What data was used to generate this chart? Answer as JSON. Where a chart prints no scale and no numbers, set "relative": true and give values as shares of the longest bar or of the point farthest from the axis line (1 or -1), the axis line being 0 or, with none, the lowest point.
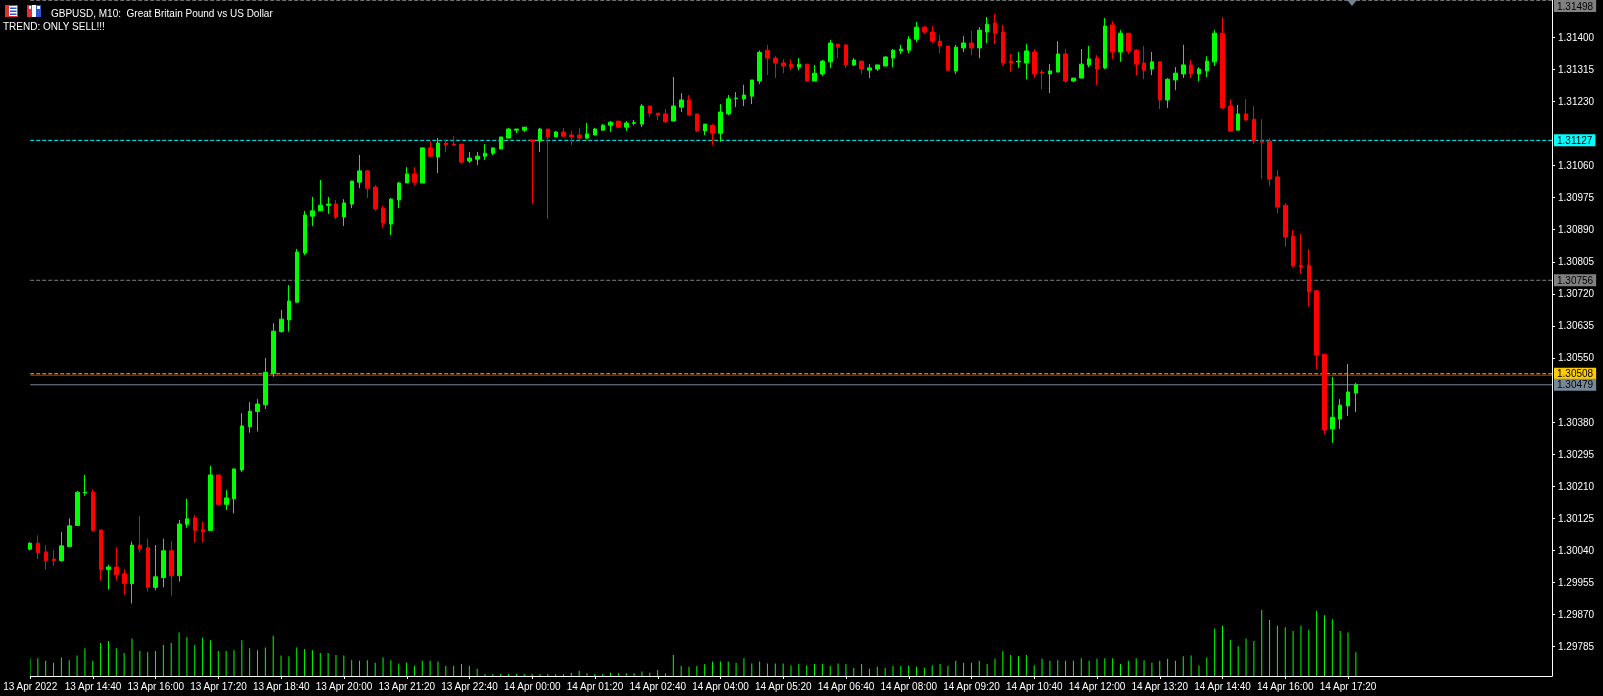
{
  "chart_data": [
    {
      "type": "candlestick",
      "title": "GBPUSD, M10:  Great Britain Pound vs US Dollar",
      "annotations": [
        "TREND: ONLY SELL!!!"
      ],
      "x": [
        "2022-04-13T13:20",
        "2022-04-13T13:30",
        "2022-04-13T13:40",
        "2022-04-13T13:50",
        "2022-04-13T14:00",
        "2022-04-13T14:10",
        "2022-04-13T14:20",
        "2022-04-13T14:30",
        "2022-04-13T14:40",
        "2022-04-13T14:50",
        "2022-04-13T15:00",
        "2022-04-13T15:10",
        "2022-04-13T15:20",
        "2022-04-13T15:30",
        "2022-04-13T15:40",
        "2022-04-13T15:50",
        "2022-04-13T16:00",
        "2022-04-13T16:10",
        "2022-04-13T16:20",
        "2022-04-13T16:30",
        "2022-04-13T16:40",
        "2022-04-13T16:50",
        "2022-04-13T17:00",
        "2022-04-13T17:10",
        "2022-04-13T17:20",
        "2022-04-13T17:30",
        "2022-04-13T17:40",
        "2022-04-13T17:50",
        "2022-04-13T18:00",
        "2022-04-13T18:10",
        "2022-04-13T18:20",
        "2022-04-13T18:30",
        "2022-04-13T18:40",
        "2022-04-13T18:50",
        "2022-04-13T19:00",
        "2022-04-13T19:10",
        "2022-04-13T19:20",
        "2022-04-13T19:30",
        "2022-04-13T19:40",
        "2022-04-13T19:50",
        "2022-04-13T20:00",
        "2022-04-13T20:10",
        "2022-04-13T20:20",
        "2022-04-13T20:30",
        "2022-04-13T20:40",
        "2022-04-13T20:50",
        "2022-04-13T21:00",
        "2022-04-13T21:10",
        "2022-04-13T21:20",
        "2022-04-13T21:30",
        "2022-04-13T21:40",
        "2022-04-13T21:50",
        "2022-04-13T22:00",
        "2022-04-13T22:10",
        "2022-04-13T22:20",
        "2022-04-13T22:30",
        "2022-04-13T22:40",
        "2022-04-13T22:50",
        "2022-04-13T23:00",
        "2022-04-13T23:10",
        "2022-04-13T23:20",
        "2022-04-13T23:30",
        "2022-04-13T23:40",
        "2022-04-13T23:50",
        "2022-04-14T00:00",
        "2022-04-14T00:10",
        "2022-04-14T00:20",
        "2022-04-14T00:30",
        "2022-04-14T00:40",
        "2022-04-14T00:50",
        "2022-04-14T01:00",
        "2022-04-14T01:10",
        "2022-04-14T01:20",
        "2022-04-14T01:30",
        "2022-04-14T01:40",
        "2022-04-14T01:50",
        "2022-04-14T02:00",
        "2022-04-14T02:10",
        "2022-04-14T02:20",
        "2022-04-14T02:30",
        "2022-04-14T02:40",
        "2022-04-14T02:50",
        "2022-04-14T03:00",
        "2022-04-14T03:10",
        "2022-04-14T03:20",
        "2022-04-14T03:30",
        "2022-04-14T03:40",
        "2022-04-14T03:50",
        "2022-04-14T04:00",
        "2022-04-14T04:10",
        "2022-04-14T04:20",
        "2022-04-14T04:30",
        "2022-04-14T04:40",
        "2022-04-14T04:50",
        "2022-04-14T05:00",
        "2022-04-14T05:10",
        "2022-04-14T05:20",
        "2022-04-14T05:30",
        "2022-04-14T05:40",
        "2022-04-14T05:50",
        "2022-04-14T06:00",
        "2022-04-14T06:10",
        "2022-04-14T06:20",
        "2022-04-14T06:30",
        "2022-04-14T06:40",
        "2022-04-14T06:50",
        "2022-04-14T07:00",
        "2022-04-14T07:10",
        "2022-04-14T07:20",
        "2022-04-14T07:30",
        "2022-04-14T07:40",
        "2022-04-14T07:50",
        "2022-04-14T08:00",
        "2022-04-14T08:10",
        "2022-04-14T08:20",
        "2022-04-14T08:30",
        "2022-04-14T08:40",
        "2022-04-14T08:50",
        "2022-04-14T09:00",
        "2022-04-14T09:10",
        "2022-04-14T09:20",
        "2022-04-14T09:30",
        "2022-04-14T09:40",
        "2022-04-14T09:50",
        "2022-04-14T10:00",
        "2022-04-14T10:10",
        "2022-04-14T10:20",
        "2022-04-14T10:30",
        "2022-04-14T10:40",
        "2022-04-14T10:50",
        "2022-04-14T11:00",
        "2022-04-14T11:10",
        "2022-04-14T11:20",
        "2022-04-14T11:30",
        "2022-04-14T11:40",
        "2022-04-14T11:50",
        "2022-04-14T12:00",
        "2022-04-14T12:10",
        "2022-04-14T12:20",
        "2022-04-14T12:30",
        "2022-04-14T12:40",
        "2022-04-14T12:50",
        "2022-04-14T13:00",
        "2022-04-14T13:10",
        "2022-04-14T13:20",
        "2022-04-14T13:30",
        "2022-04-14T13:40",
        "2022-04-14T13:50",
        "2022-04-14T14:00",
        "2022-04-14T14:10",
        "2022-04-14T14:20",
        "2022-04-14T14:30",
        "2022-04-14T14:40",
        "2022-04-14T14:50",
        "2022-04-14T15:00",
        "2022-04-14T15:10",
        "2022-04-14T15:20",
        "2022-04-14T15:30",
        "2022-04-14T15:40",
        "2022-04-14T15:50",
        "2022-04-14T16:00",
        "2022-04-14T16:10",
        "2022-04-14T16:20",
        "2022-04-14T16:30",
        "2022-04-14T16:40",
        "2022-04-14T16:50",
        "2022-04-14T17:00",
        "2022-04-14T17:10",
        "2022-04-14T17:20",
        "2022-04-14T17:30"
      ],
      "ohlc": [
        [
          1.30043,
          1.30062,
          1.3004,
          1.30059
        ],
        [
          1.30059,
          1.3008,
          1.30017,
          1.30034
        ],
        [
          1.30036,
          1.30054,
          1.29989,
          1.30013
        ],
        [
          1.30017,
          1.30041,
          1.29999,
          1.30013
        ],
        [
          1.30013,
          1.30089,
          1.3001,
          1.30052
        ],
        [
          1.3005,
          1.30125,
          1.3005,
          1.30105
        ],
        [
          1.30106,
          1.30198,
          1.30106,
          1.30194
        ],
        [
          1.30192,
          1.3024,
          1.30185,
          1.30194
        ],
        [
          1.30194,
          1.30202,
          1.3009,
          1.30093
        ],
        [
          1.30094,
          1.30094,
          1.2996,
          1.29989
        ],
        [
          1.29989,
          1.30002,
          1.29936,
          1.29996
        ],
        [
          1.29996,
          1.30048,
          1.2996,
          1.29976
        ],
        [
          1.29978,
          1.2999,
          1.29923,
          1.29952
        ],
        [
          1.29952,
          1.30063,
          1.29899,
          1.30054
        ],
        [
          1.30054,
          1.30132,
          1.30034,
          1.30044
        ],
        [
          1.30047,
          1.30071,
          1.29931,
          1.29942
        ],
        [
          1.29942,
          1.30054,
          1.29934,
          1.2997
        ],
        [
          1.29968,
          1.30071,
          1.29942,
          1.30039
        ],
        [
          1.30039,
          1.30065,
          1.2992,
          1.29973
        ],
        [
          1.29973,
          1.30121,
          1.29957,
          1.3011
        ],
        [
          1.30109,
          1.30177,
          1.301,
          1.30124
        ],
        [
          1.30126,
          1.30134,
          1.30061,
          1.30093
        ],
        [
          1.30095,
          1.30116,
          1.30061,
          1.3009
        ],
        [
          1.30093,
          1.30264,
          1.30093,
          1.3024
        ],
        [
          1.3024,
          1.3024,
          1.30159,
          1.30162
        ],
        [
          1.30162,
          1.302,
          1.30147,
          1.30179
        ],
        [
          1.30177,
          1.30256,
          1.30138,
          1.30256
        ],
        [
          1.30253,
          1.30404,
          1.30248,
          1.3037
        ],
        [
          1.30368,
          1.30433,
          1.30352,
          1.30409
        ],
        [
          1.30408,
          1.30441,
          1.30355,
          1.30428
        ],
        [
          1.30426,
          1.3055,
          1.30415,
          1.30512
        ],
        [
          1.30509,
          1.30642,
          1.305,
          1.30621
        ],
        [
          1.3062,
          1.30677,
          1.30617,
          1.30653
        ],
        [
          1.30651,
          1.30743,
          1.3062,
          1.30701
        ],
        [
          1.30698,
          1.30839,
          1.30698,
          1.30831
        ],
        [
          1.30828,
          1.3094,
          1.30823,
          1.30929
        ],
        [
          1.30926,
          1.30977,
          1.309,
          1.3094
        ],
        [
          1.3094,
          1.31022,
          1.3094,
          1.30955
        ],
        [
          1.30955,
          1.30977,
          1.30932,
          1.30958
        ],
        [
          1.30958,
          1.30969,
          1.30918,
          1.30924
        ],
        [
          1.30924,
          1.30971,
          1.309,
          1.30961
        ],
        [
          1.30958,
          1.31019,
          1.30947,
          1.31019
        ],
        [
          1.31016,
          1.31088,
          1.31,
          1.31046
        ],
        [
          1.31046,
          1.31048,
          1.30974,
          1.31
        ],
        [
          1.31003,
          1.31008,
          1.3094,
          1.30945
        ],
        [
          1.30947,
          1.30953,
          1.30894,
          1.30908
        ],
        [
          1.30905,
          1.30974,
          1.30876,
          1.30971
        ],
        [
          1.30969,
          1.31016,
          1.30947,
          1.31014
        ],
        [
          1.31014,
          1.31056,
          1.31014,
          1.31038
        ],
        [
          1.31038,
          1.31056,
          1.31008,
          1.31016
        ],
        [
          1.31014,
          1.31107,
          1.31014,
          1.31107
        ],
        [
          1.31107,
          1.31125,
          1.31083,
          1.31085
        ],
        [
          1.31083,
          1.31133,
          1.3104,
          1.3112
        ],
        [
          1.3112,
          1.31128,
          1.31096,
          1.31115
        ],
        [
          1.31117,
          1.31138,
          1.31112,
          1.31115
        ],
        [
          1.31117,
          1.31117,
          1.31067,
          1.31069
        ],
        [
          1.31072,
          1.31096,
          1.31067,
          1.3108
        ],
        [
          1.31077,
          1.31096,
          1.31061,
          1.31085
        ],
        [
          1.31085,
          1.31117,
          1.31075,
          1.31093
        ],
        [
          1.31093,
          1.31107,
          1.31088,
          1.31107
        ],
        [
          1.31104,
          1.31136,
          1.31104,
          1.31136
        ],
        [
          1.31133,
          1.3116,
          1.31133,
          1.31157
        ],
        [
          1.31154,
          1.31157,
          1.31146,
          1.31157
        ],
        [
          1.31154,
          1.31162,
          1.31149,
          1.31162
        ],
        [
          1.31128,
          1.31128,
          1.30958,
          1.31124
        ],
        [
          1.31125,
          1.3116,
          1.31096,
          1.31157
        ],
        [
          1.31157,
          1.31157,
          1.30918,
          1.31136
        ],
        [
          1.31136,
          1.31152,
          1.31136,
          1.31149
        ],
        [
          1.31149,
          1.3116,
          1.31138,
          1.31138
        ],
        [
          1.31141,
          1.31152,
          1.31115,
          1.31136
        ],
        [
          1.31141,
          1.3116,
          1.31128,
          1.31133
        ],
        [
          1.31133,
          1.31173,
          1.3113,
          1.31144
        ],
        [
          1.31141,
          1.3116,
          1.31141,
          1.31157
        ],
        [
          1.31154,
          1.3117,
          1.31154,
          1.31167
        ],
        [
          1.31167,
          1.31178,
          1.31149,
          1.31175
        ],
        [
          1.31178,
          1.31178,
          1.3116,
          1.31162
        ],
        [
          1.31162,
          1.31178,
          1.31152,
          1.31173
        ],
        [
          1.31172,
          1.31181,
          1.31167,
          1.31174
        ],
        [
          1.3117,
          1.31223,
          1.31162,
          1.31218
        ],
        [
          1.31218,
          1.31218,
          1.31189,
          1.31199
        ],
        [
          1.31199,
          1.31199,
          1.31181,
          1.31194
        ],
        [
          1.31197,
          1.3121,
          1.31173,
          1.31176
        ],
        [
          1.31178,
          1.31295,
          1.31178,
          1.31218
        ],
        [
          1.31215,
          1.31252,
          1.31202,
          1.31234
        ],
        [
          1.31234,
          1.31247,
          1.31194,
          1.31194
        ],
        [
          1.31197,
          1.31197,
          1.31149,
          1.31152
        ],
        [
          1.31152,
          1.3117,
          1.31141,
          1.3117
        ],
        [
          1.31167,
          1.3117,
          1.31115,
          1.31146
        ],
        [
          1.31146,
          1.31223,
          1.31123,
          1.31202
        ],
        [
          1.31197,
          1.31247,
          1.31194,
          1.31237
        ],
        [
          1.31238,
          1.31255,
          1.31215,
          1.31239
        ],
        [
          1.31237,
          1.31274,
          1.31218,
          1.31247
        ],
        [
          1.31244,
          1.31287,
          1.31223,
          1.31287
        ],
        [
          1.31284,
          1.31365,
          1.31276,
          1.3136
        ],
        [
          1.31365,
          1.3138,
          1.313,
          1.31345
        ],
        [
          1.31345,
          1.3135,
          1.31292,
          1.31332
        ],
        [
          1.31332,
          1.31342,
          1.31305,
          1.31324
        ],
        [
          1.31328,
          1.31342,
          1.31313,
          1.31321
        ],
        [
          1.31321,
          1.31345,
          1.31313,
          1.31329
        ],
        [
          1.31329,
          1.31329,
          1.31284,
          1.31284
        ],
        [
          1.31284,
          1.31327,
          1.31284,
          1.31305
        ],
        [
          1.31303,
          1.3134,
          1.31297,
          1.31337
        ],
        [
          1.31335,
          1.31393,
          1.31319,
          1.31385
        ],
        [
          1.31382,
          1.31382,
          1.31345,
          1.31374
        ],
        [
          1.3138,
          1.31382,
          1.31319,
          1.31327
        ],
        [
          1.31327,
          1.31345,
          1.31324,
          1.3134
        ],
        [
          1.31337,
          1.31337,
          1.31303,
          1.31316
        ],
        [
          1.31313,
          1.31329,
          1.31292,
          1.31319
        ],
        [
          1.31316,
          1.31327,
          1.31311,
          1.31327
        ],
        [
          1.31324,
          1.3135,
          1.31324,
          1.31348
        ],
        [
          1.31345,
          1.31369,
          1.31321,
          1.31366
        ],
        [
          1.31364,
          1.3138,
          1.31356,
          1.31369
        ],
        [
          1.31366,
          1.31403,
          1.31358,
          1.31395
        ],
        [
          1.31395,
          1.31441,
          1.31387,
          1.31427
        ],
        [
          1.31427,
          1.3143,
          1.31409,
          1.31414
        ],
        [
          1.31414,
          1.3143,
          1.31385,
          1.3139
        ],
        [
          1.3139,
          1.31406,
          1.31358,
          1.31377
        ],
        [
          1.31377,
          1.31377,
          1.31311,
          1.31313
        ],
        [
          1.31311,
          1.3138,
          1.31303,
          1.31374
        ],
        [
          1.31372,
          1.31403,
          1.31361,
          1.31385
        ],
        [
          1.31385,
          1.31417,
          1.31353,
          1.31372
        ],
        [
          1.31372,
          1.31427,
          1.31345,
          1.31419
        ],
        [
          1.31414,
          1.31454,
          1.31385,
          1.31435
        ],
        [
          1.31438,
          1.31462,
          1.31382,
          1.31411
        ],
        [
          1.31414,
          1.31433,
          1.31324,
          1.31332
        ],
        [
          1.31337,
          1.31356,
          1.31308,
          1.31332
        ],
        [
          1.31335,
          1.31361,
          1.31319,
          1.31337
        ],
        [
          1.31332,
          1.31382,
          1.31289,
          1.31364
        ],
        [
          1.31361,
          1.31369,
          1.31292,
          1.31303
        ],
        [
          1.31308,
          1.31313,
          1.31263,
          1.31305
        ],
        [
          1.31303,
          1.31329,
          1.31252,
          1.31311
        ],
        [
          1.31308,
          1.3139,
          1.31308,
          1.31356
        ],
        [
          1.31356,
          1.31369,
          1.31279,
          1.31284
        ],
        [
          1.31284,
          1.31292,
          1.31281,
          1.31292
        ],
        [
          1.31292,
          1.31369,
          1.31292,
          1.31329
        ],
        [
          1.31327,
          1.31377,
          1.31321,
          1.31343
        ],
        [
          1.31345,
          1.31353,
          1.31274,
          1.31316
        ],
        [
          1.31319,
          1.31451,
          1.31316,
          1.3143
        ],
        [
          1.31433,
          1.31443,
          1.31343,
          1.31361
        ],
        [
          1.31361,
          1.31419,
          1.31335,
          1.31411
        ],
        [
          1.31411,
          1.31411,
          1.31356,
          1.31364
        ],
        [
          1.31366,
          1.31369,
          1.313,
          1.31329
        ],
        [
          1.31332,
          1.31377,
          1.31289,
          1.31313
        ],
        [
          1.31316,
          1.31361,
          1.313,
          1.31335
        ],
        [
          1.31335,
          1.31335,
          1.3121,
          1.31234
        ],
        [
          1.31234,
          1.31292,
          1.31213,
          1.31289
        ],
        [
          1.31287,
          1.31321,
          1.3126,
          1.31305
        ],
        [
          1.31303,
          1.3138,
          1.31292,
          1.31327
        ],
        [
          1.31327,
          1.3134,
          1.31292,
          1.31303
        ],
        [
          1.31303,
          1.31321,
          1.31284,
          1.31316
        ],
        [
          1.31311,
          1.3135,
          1.31295,
          1.31337
        ],
        [
          1.31335,
          1.31419,
          1.31324,
          1.31411
        ],
        [
          1.31411,
          1.31454,
          1.3121,
          1.31213
        ],
        [
          1.31218,
          1.31236,
          1.31149,
          1.31152
        ],
        [
          1.31154,
          1.31221,
          1.31154,
          1.31197
        ],
        [
          1.31197,
          1.31236,
          1.31178,
          1.31181
        ],
        [
          1.31183,
          1.31218,
          1.31117,
          1.31125
        ],
        [
          1.31125,
          1.31183,
          1.31024,
          1.31122
        ],
        [
          1.31125,
          1.31133,
          1.31006,
          1.31024
        ],
        [
          1.3103,
          1.31048,
          1.30934,
          1.3095
        ],
        [
          1.30955,
          1.30961,
          1.30844,
          1.30871
        ],
        [
          1.30873,
          1.30889,
          1.30791,
          1.30794
        ],
        [
          1.30796,
          1.30879,
          1.30773,
          1.30791
        ],
        [
          1.30796,
          1.30838,
          1.30687,
          1.30725
        ],
        [
          1.30728,
          1.3073,
          1.30521,
          1.30558
        ],
        [
          1.3056,
          1.3056,
          1.30348,
          1.30359
        ],
        [
          1.30362,
          1.305,
          1.30325,
          1.30393
        ],
        [
          1.30388,
          1.30441,
          1.30362,
          1.30425
        ],
        [
          1.30423,
          1.30534,
          1.30396,
          1.3046
        ],
        [
          1.30457,
          1.30484,
          1.30407,
          1.30479
        ]
      ],
      "colors": [
        "#00ff00",
        "#ff0000",
        "#ff0000",
        "#ff0000",
        "#00ff00",
        "#00ff00",
        "#00ff00",
        "#00ff00",
        "#ff0000",
        "#ff0000",
        "#00ff00",
        "#ff0000",
        "#ff0000",
        "#00ff00",
        "#ff0000",
        "#ff0000",
        "#00ff00",
        "#00ff00",
        "#ff0000",
        "#00ff00",
        "#00ff00",
        "#ff0000",
        "#ff0000",
        "#00ff00",
        "#ff0000",
        "#00ff00",
        "#00ff00",
        "#00ff00",
        "#00ff00",
        "#00ff00",
        "#00ff00",
        "#00ff00",
        "#00ff00",
        "#00ff00",
        "#00ff00",
        "#00ff00",
        "#00ff00",
        "#00ff00",
        "#00ff00",
        "#ff0000",
        "#00ff00",
        "#00ff00",
        "#00ff00",
        "#ff0000",
        "#ff0000",
        "#ff0000",
        "#00ff00",
        "#00ff00",
        "#00ff00",
        "#ff0000",
        "#00ff00",
        "#ff0000",
        "#00ff00",
        "#ff0000",
        "#ff0000",
        "#ff0000",
        "#00ff00",
        "#00ff00",
        "#00ff00",
        "#00ff00",
        "#00ff00",
        "#00ff00",
        "#00ff00",
        "#00ff00",
        "#ff0000",
        "#00ff00",
        "#ff0000",
        "#00ff00",
        "#ff0000",
        "#ff0000",
        "#ff0000",
        "#00ff00",
        "#00ff00",
        "#00ff00",
        "#00ff00",
        "#ff0000",
        "#00ff00",
        "#00ff00",
        "#00ff00",
        "#ff0000",
        "#ff0000",
        "#ff0000",
        "#00ff00",
        "#00ff00",
        "#ff0000",
        "#ff0000",
        "#00ff00",
        "#ff0000",
        "#00ff00",
        "#00ff00",
        "#00ff00",
        "#00ff00",
        "#00ff00",
        "#00ff00",
        "#ff0000",
        "#ff0000",
        "#ff0000",
        "#ff0000",
        "#00ff00",
        "#ff0000",
        "#00ff00",
        "#00ff00",
        "#00ff00",
        "#ff0000",
        "#ff0000",
        "#00ff00",
        "#ff0000",
        "#00ff00",
        "#00ff00",
        "#00ff00",
        "#00ff00",
        "#00ff00",
        "#00ff00",
        "#00ff00",
        "#ff0000",
        "#ff0000",
        "#ff0000",
        "#ff0000",
        "#00ff00",
        "#00ff00",
        "#ff0000",
        "#00ff00",
        "#00ff00",
        "#ff0000",
        "#ff0000",
        "#ff0000",
        "#00ff00",
        "#00ff00",
        "#ff0000",
        "#ff0000",
        "#00ff00",
        "#00ff00",
        "#ff0000",
        "#00ff00",
        "#00ff00",
        "#00ff00",
        "#ff0000",
        "#00ff00",
        "#ff0000",
        "#00ff00",
        "#ff0000",
        "#ff0000",
        "#ff0000",
        "#00ff00",
        "#ff0000",
        "#00ff00",
        "#00ff00",
        "#00ff00",
        "#ff0000",
        "#00ff00",
        "#00ff00",
        "#00ff00",
        "#ff0000",
        "#ff0000",
        "#00ff00",
        "#ff0000",
        "#ff0000",
        "#ff0000",
        "#ff0000",
        "#ff0000",
        "#ff0000",
        "#ff0000",
        "#ff0000",
        "#ff0000",
        "#ff0000",
        "#ff0000",
        "#00ff00",
        "#00ff00",
        "#00ff00",
        "#00ff00"
      ],
      "xlim": [
        "2022-04-13T13:20",
        "2022-04-14T21:40"
      ],
      "xticks": [
        {
          "value": "2022-04-13T13:20",
          "label": "13 Apr 2022"
        },
        {
          "value": "2022-04-13T14:40",
          "label": "13 Apr 14:40"
        },
        {
          "value": "2022-04-13T16:00",
          "label": "13 Apr 16:00"
        },
        {
          "value": "2022-04-13T17:20",
          "label": "13 Apr 17:20"
        },
        {
          "value": "2022-04-13T18:40",
          "label": "13 Apr 18:40"
        },
        {
          "value": "2022-04-13T20:00",
          "label": "13 Apr 20:00"
        },
        {
          "value": "2022-04-13T21:20",
          "label": "13 Apr 21:20"
        },
        {
          "value": "2022-04-13T22:40",
          "label": "13 Apr 22:40"
        },
        {
          "value": "2022-04-14T00:00",
          "label": "14 Apr 00:00"
        },
        {
          "value": "2022-04-14T01:20",
          "label": "14 Apr 01:20"
        },
        {
          "value": "2022-04-14T02:40",
          "label": "14 Apr 02:40"
        },
        {
          "value": "2022-04-14T04:00",
          "label": "14 Apr 04:00"
        },
        {
          "value": "2022-04-14T05:20",
          "label": "14 Apr 05:20"
        },
        {
          "value": "2022-04-14T06:40",
          "label": "14 Apr 06:40"
        },
        {
          "value": "2022-04-14T08:00",
          "label": "14 Apr 08:00"
        },
        {
          "value": "2022-04-14T09:20",
          "label": "14 Apr 09:20"
        },
        {
          "value": "2022-04-14T10:40",
          "label": "14 Apr 10:40"
        },
        {
          "value": "2022-04-14T12:00",
          "label": "14 Apr 12:00"
        },
        {
          "value": "2022-04-14T13:20",
          "label": "14 Apr 13:20"
        },
        {
          "value": "2022-04-14T14:40",
          "label": "14 Apr 14:40"
        },
        {
          "value": "2022-04-14T16:00",
          "label": "14 Apr 16:00"
        },
        {
          "value": "2022-04-14T17:20",
          "label": "14 Apr 17:20"
        }
      ],
      "ylim": [
        1.29707,
        1.31499
      ],
      "yticks": [
        1.29785,
        {
          "value": 1.2987,
          "label": "1.29870"
        },
        1.29955,
        {
          "value": 1.3004,
          "label": "1.30040"
        },
        1.30125,
        {
          "value": 1.3021,
          "label": "1.30210"
        },
        1.30295,
        {
          "value": 1.3038,
          "label": "1.30380"
        },
        {
          "value": 1.3055,
          "label": "1.30550"
        },
        1.30635,
        {
          "value": 1.3072,
          "label": "1.30720"
        },
        1.30805,
        {
          "value": 1.3089,
          "label": "1.30890"
        },
        1.30975,
        {
          "value": 1.3106,
          "label": "1.31060"
        },
        {
          "value": 1.3123,
          "label": "1.31230"
        },
        1.31315,
        {
          "value": 1.314,
          "label": "1.31400"
        }
      ],
      "grid": false,
      "ref_lines": [
        {
          "axis": "y",
          "value": 1.31498,
          "label": "1.31498",
          "color": "#808080",
          "line_style": "dashed"
        },
        {
          "axis": "y",
          "value": 1.31127,
          "label": "1.31127",
          "color": "#00ffff",
          "line_style": "dashed"
        },
        {
          "axis": "y",
          "value": 1.30756,
          "label": "1.30756",
          "color": "#808080",
          "line_style": "dashed"
        },
        {
          "axis": "y",
          "value": 1.30508,
          "label": "1.30508",
          "color": "#ffcc00",
          "line_style": "dashed"
        },
        {
          "axis": "y",
          "value": 1.30504,
          "color": "#ff0000",
          "line_style": "solid"
        },
        {
          "axis": "y",
          "value": 1.30479,
          "label": "1.30479",
          "color": "#778899",
          "line_style": "solid"
        }
      ]
    },
    {
      "type": "bar",
      "relative": true,
      "color": "#00ff00",
      "tick_labels": false,
      "x": [
        "2022-04-13T13:20",
        "2022-04-13T13:30",
        "2022-04-13T13:40",
        "2022-04-13T13:50",
        "2022-04-13T14:00",
        "2022-04-13T14:10",
        "2022-04-13T14:20",
        "2022-04-13T14:30",
        "2022-04-13T14:40",
        "2022-04-13T14:50",
        "2022-04-13T15:00",
        "2022-04-13T15:10",
        "2022-04-13T15:20",
        "2022-04-13T15:30",
        "2022-04-13T15:40",
        "2022-04-13T15:50",
        "2022-04-13T16:00",
        "2022-04-13T16:10",
        "2022-04-13T16:20",
        "2022-04-13T16:30",
        "2022-04-13T16:40",
        "2022-04-13T16:50",
        "2022-04-13T17:00",
        "2022-04-13T17:10",
        "2022-04-13T17:20",
        "2022-04-13T17:30",
        "2022-04-13T17:40",
        "2022-04-13T17:50",
        "2022-04-13T18:00",
        "2022-04-13T18:10",
        "2022-04-13T18:20",
        "2022-04-13T18:30",
        "2022-04-13T18:40",
        "2022-04-13T18:50",
        "2022-04-13T19:00",
        "2022-04-13T19:10",
        "2022-04-13T19:20",
        "2022-04-13T19:30",
        "2022-04-13T19:40",
        "2022-04-13T19:50",
        "2022-04-13T20:00",
        "2022-04-13T20:10",
        "2022-04-13T20:20",
        "2022-04-13T20:30",
        "2022-04-13T20:40",
        "2022-04-13T20:50",
        "2022-04-13T21:00",
        "2022-04-13T21:10",
        "2022-04-13T21:20",
        "2022-04-13T21:30",
        "2022-04-13T21:40",
        "2022-04-13T21:50",
        "2022-04-13T22:00",
        "2022-04-13T22:10",
        "2022-04-13T22:20",
        "2022-04-13T22:30",
        "2022-04-13T22:40",
        "2022-04-13T22:50",
        "2022-04-13T23:00",
        "2022-04-13T23:10",
        "2022-04-13T23:20",
        "2022-04-13T23:30",
        "2022-04-13T23:40",
        "2022-04-13T23:50",
        "2022-04-14T00:00",
        "2022-04-14T00:10",
        "2022-04-14T00:20",
        "2022-04-14T00:30",
        "2022-04-14T00:40",
        "2022-04-14T00:50",
        "2022-04-14T01:00",
        "2022-04-14T01:10",
        "2022-04-14T01:20",
        "2022-04-14T01:30",
        "2022-04-14T01:40",
        "2022-04-14T01:50",
        "2022-04-14T02:00",
        "2022-04-14T02:10",
        "2022-04-14T02:20",
        "2022-04-14T02:30",
        "2022-04-14T02:40",
        "2022-04-14T02:50",
        "2022-04-14T03:00",
        "2022-04-14T03:10",
        "2022-04-14T03:20",
        "2022-04-14T03:30",
        "2022-04-14T03:40",
        "2022-04-14T03:50",
        "2022-04-14T04:00",
        "2022-04-14T04:10",
        "2022-04-14T04:20",
        "2022-04-14T04:30",
        "2022-04-14T04:40",
        "2022-04-14T04:50",
        "2022-04-14T05:00",
        "2022-04-14T05:10",
        "2022-04-14T05:20",
        "2022-04-14T05:30",
        "2022-04-14T05:40",
        "2022-04-14T05:50",
        "2022-04-14T06:00",
        "2022-04-14T06:10",
        "2022-04-14T06:20",
        "2022-04-14T06:30",
        "2022-04-14T06:40",
        "2022-04-14T06:50",
        "2022-04-14T07:00",
        "2022-04-14T07:10",
        "2022-04-14T07:20",
        "2022-04-14T07:30",
        "2022-04-14T07:40",
        "2022-04-14T07:50",
        "2022-04-14T08:00",
        "2022-04-14T08:10",
        "2022-04-14T08:20",
        "2022-04-14T08:30",
        "2022-04-14T08:40",
        "2022-04-14T08:50",
        "2022-04-14T09:00",
        "2022-04-14T09:10",
        "2022-04-14T09:20",
        "2022-04-14T09:30",
        "2022-04-14T09:40",
        "2022-04-14T09:50",
        "2022-04-14T10:00",
        "2022-04-14T10:10",
        "2022-04-14T10:20",
        "2022-04-14T10:30",
        "2022-04-14T10:40",
        "2022-04-14T10:50",
        "2022-04-14T11:00",
        "2022-04-14T11:10",
        "2022-04-14T11:20",
        "2022-04-14T11:30",
        "2022-04-14T11:40",
        "2022-04-14T11:50",
        "2022-04-14T12:00",
        "2022-04-14T12:10",
        "2022-04-14T12:20",
        "2022-04-14T12:30",
        "2022-04-14T12:40",
        "2022-04-14T12:50",
        "2022-04-14T13:00",
        "2022-04-14T13:10",
        "2022-04-14T13:20",
        "2022-04-14T13:30",
        "2022-04-14T13:40",
        "2022-04-14T13:50",
        "2022-04-14T14:00",
        "2022-04-14T14:10",
        "2022-04-14T14:20",
        "2022-04-14T14:30",
        "2022-04-14T14:40",
        "2022-04-14T14:50",
        "2022-04-14T15:00",
        "2022-04-14T15:10",
        "2022-04-14T15:20",
        "2022-04-14T15:30",
        "2022-04-14T15:40",
        "2022-04-14T15:50",
        "2022-04-14T16:00",
        "2022-04-14T16:10",
        "2022-04-14T16:20",
        "2022-04-14T16:30",
        "2022-04-14T16:40",
        "2022-04-14T16:50",
        "2022-04-14T17:00",
        "2022-04-14T17:10",
        "2022-04-14T17:20",
        "2022-04-14T17:30"
      ],
      "values": [
        0.27,
        0.27,
        0.23,
        0.2,
        0.28,
        0.24,
        0.31,
        0.42,
        0.23,
        0.5,
        0.53,
        0.42,
        0.35,
        0.57,
        0.38,
        0.36,
        0.38,
        0.47,
        0.5,
        0.66,
        0.59,
        0.47,
        0.58,
        0.54,
        0.38,
        0.38,
        0.39,
        0.54,
        0.42,
        0.39,
        0.43,
        0.61,
        0.31,
        0.3,
        0.43,
        0.41,
        0.39,
        0.35,
        0.35,
        0.32,
        0.31,
        0.24,
        0.23,
        0.24,
        0.2,
        0.28,
        0.24,
        0.19,
        0.2,
        0.15,
        0.23,
        0.23,
        0.22,
        0.15,
        0.15,
        0.18,
        0.15,
        0.11,
        0.03,
        0.03,
        0.03,
        0.03,
        0.03,
        0.03,
        0.03,
        0.03,
        0.03,
        0.03,
        0.03,
        0.05,
        0.08,
        0.04,
        0.03,
        0.03,
        0.05,
        0.04,
        0.04,
        0.04,
        0.07,
        0.05,
        0.09,
        0.04,
        0.32,
        0.15,
        0.14,
        0.15,
        0.18,
        0.22,
        0.22,
        0.22,
        0.2,
        0.27,
        0.19,
        0.22,
        0.19,
        0.19,
        0.19,
        0.16,
        0.18,
        0.16,
        0.18,
        0.18,
        0.15,
        0.19,
        0.18,
        0.12,
        0.18,
        0.11,
        0.14,
        0.12,
        0.15,
        0.15,
        0.16,
        0.14,
        0.12,
        0.16,
        0.18,
        0.15,
        0.23,
        0.2,
        0.2,
        0.23,
        0.18,
        0.26,
        0.38,
        0.32,
        0.3,
        0.32,
        0.16,
        0.26,
        0.23,
        0.24,
        0.23,
        0.23,
        0.27,
        0.23,
        0.26,
        0.27,
        0.27,
        0.18,
        0.23,
        0.27,
        0.24,
        0.2,
        0.23,
        0.26,
        0.23,
        0.3,
        0.31,
        0.16,
        0.28,
        0.72,
        0.76,
        0.55,
        0.45,
        0.57,
        0.53,
        1,
        0.85,
        0.76,
        0.74,
        0.68,
        0.76,
        0.7,
        0.99,
        0.92,
        0.86,
        0.68,
        0.66,
        0.36
      ],
      "xlim": [
        "2022-04-13T13:20",
        "2022-04-14T21:40"
      ]
    }
  ]
}
